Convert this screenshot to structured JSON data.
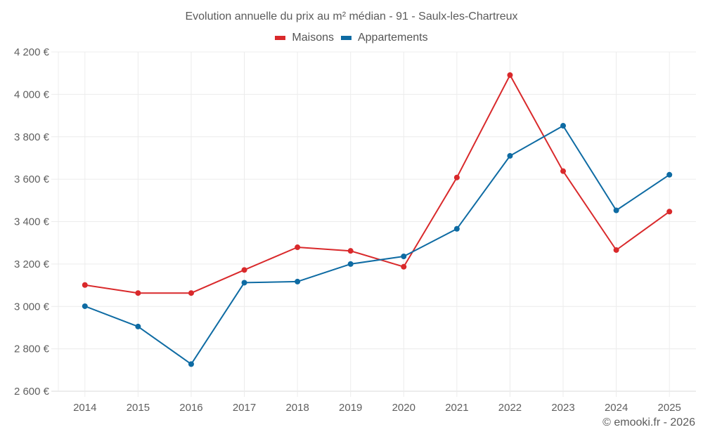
{
  "chart_data": {
    "type": "line",
    "title": "Evolution annuelle du prix au m² médian - 91 - Saulx-les-Chartreux",
    "xlabel": "",
    "ylabel": "",
    "categories": [
      "2014",
      "2015",
      "2016",
      "2017",
      "2018",
      "2019",
      "2020",
      "2021",
      "2022",
      "2023",
      "2024",
      "2025"
    ],
    "series": [
      {
        "name": "Maisons",
        "color": "#d9292b",
        "values": [
          3101,
          3063,
          3063,
          3172,
          3279,
          3262,
          3187,
          3608,
          4091,
          3638,
          3266,
          3447
        ]
      },
      {
        "name": "Appartements",
        "color": "#0e6ba3",
        "values": [
          3001,
          2905,
          2728,
          3112,
          3117,
          3200,
          3236,
          3366,
          3710,
          3852,
          3453,
          3621
        ]
      }
    ],
    "ylim": [
      2600,
      4200
    ],
    "yticks": [
      2600,
      2800,
      3000,
      3200,
      3400,
      3600,
      3800,
      4000,
      4200
    ],
    "ytick_labels": [
      "2 600 €",
      "2 800 €",
      "3 000 €",
      "3 200 €",
      "3 400 €",
      "3 600 €",
      "3 800 €",
      "4 000 €",
      "4 200 €"
    ],
    "grid": true,
    "legend_position": "top-center"
  },
  "credit": "© emooki.fr - 2026"
}
